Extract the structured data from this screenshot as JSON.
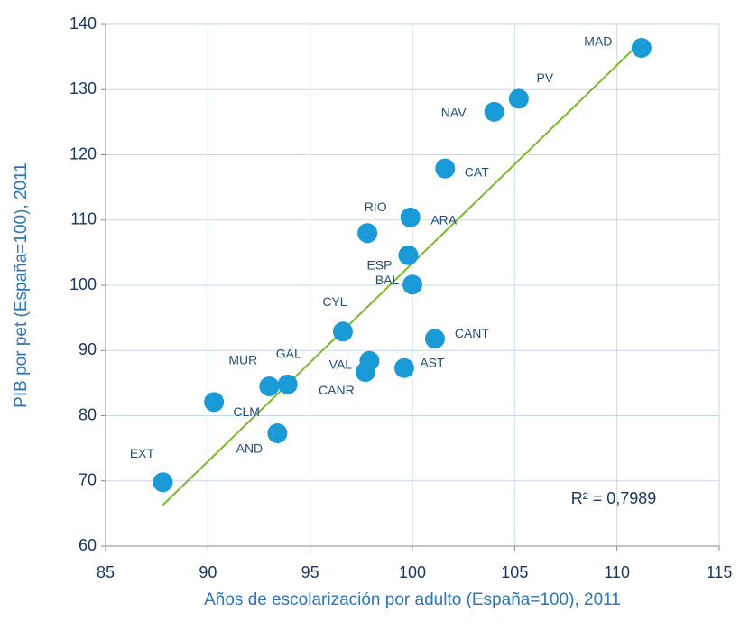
{
  "chart_data": {
    "type": "scatter",
    "xlabel": "Años de escolarización por adulto (España=100), 2011",
    "ylabel": "PIB  por pet (España=100), 2011",
    "annotation": "R² = 0,7989",
    "xlim": [
      85,
      115
    ],
    "xticks": [
      85,
      90,
      95,
      100,
      105,
      110,
      115
    ],
    "ylim": [
      60,
      140
    ],
    "yticks": [
      60,
      70,
      80,
      90,
      100,
      110,
      120,
      130,
      140
    ],
    "grid": true,
    "series": [
      {
        "color": "#1a9ad6",
        "labels": [
          "MAD",
          "PV",
          "NAV",
          "CAT",
          "ARA",
          "RIO",
          "ESP",
          "BAL",
          "CYL",
          "CANT",
          "VAL",
          "CANR",
          "AST",
          "GAL",
          "MUR",
          "CLM",
          "AND",
          "EXT"
        ],
        "x": [
          111.2,
          105.2,
          104.0,
          101.6,
          99.9,
          97.8,
          99.8,
          100.0,
          96.6,
          101.1,
          97.9,
          97.7,
          99.6,
          93.9,
          93.0,
          90.3,
          93.4,
          87.8
        ],
        "values": [
          136.4,
          128.6,
          126.6,
          117.9,
          110.4,
          108.0,
          104.6,
          100.1,
          92.9,
          91.8,
          88.4,
          86.7,
          87.3,
          84.8,
          84.5,
          82.1,
          77.3,
          69.8
        ]
      }
    ],
    "trendline": {
      "color": "#7ab929",
      "x": [
        87.8,
        111.2
      ],
      "values": [
        66.3,
        137.4
      ]
    }
  }
}
